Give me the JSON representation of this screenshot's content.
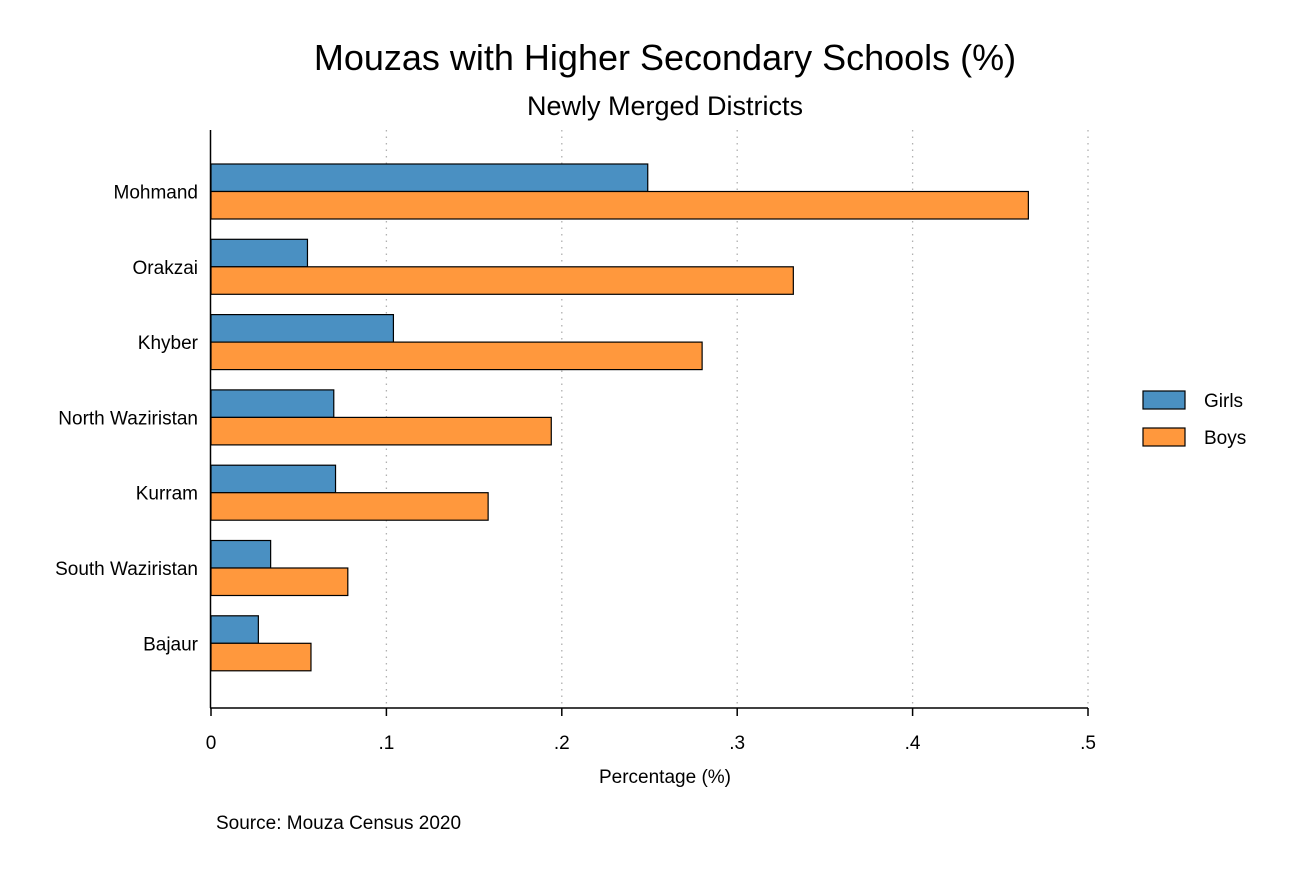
{
  "chart_data": {
    "type": "bar",
    "orientation": "horizontal",
    "title": "Mouzas with Higher Secondary Schools (%)",
    "subtitle": "Newly Merged Districts",
    "xlabel": "Percentage (%)",
    "ylabel": "",
    "note": "Source: Mouza Census 2020",
    "xlim": [
      0,
      0.5
    ],
    "x_ticks": [
      0,
      0.1,
      0.2,
      0.3,
      0.4,
      0.5
    ],
    "x_tick_labels": [
      "0",
      ".1",
      ".2",
      ".3",
      ".4",
      ".5"
    ],
    "grid": "vertical dotted",
    "legend_position": "right",
    "categories": [
      "Mohmand",
      "Orakzai",
      "Khyber",
      "North Waziristan",
      "Kurram",
      "South Waziristan",
      "Bajaur"
    ],
    "series": [
      {
        "name": "Girls",
        "color": "#4a90c2",
        "values": [
          0.249,
          0.055,
          0.104,
          0.07,
          0.071,
          0.034,
          0.027
        ]
      },
      {
        "name": "Boys",
        "color": "#ff983d",
        "values": [
          0.466,
          0.332,
          0.28,
          0.194,
          0.158,
          0.078,
          0.057
        ]
      }
    ]
  }
}
